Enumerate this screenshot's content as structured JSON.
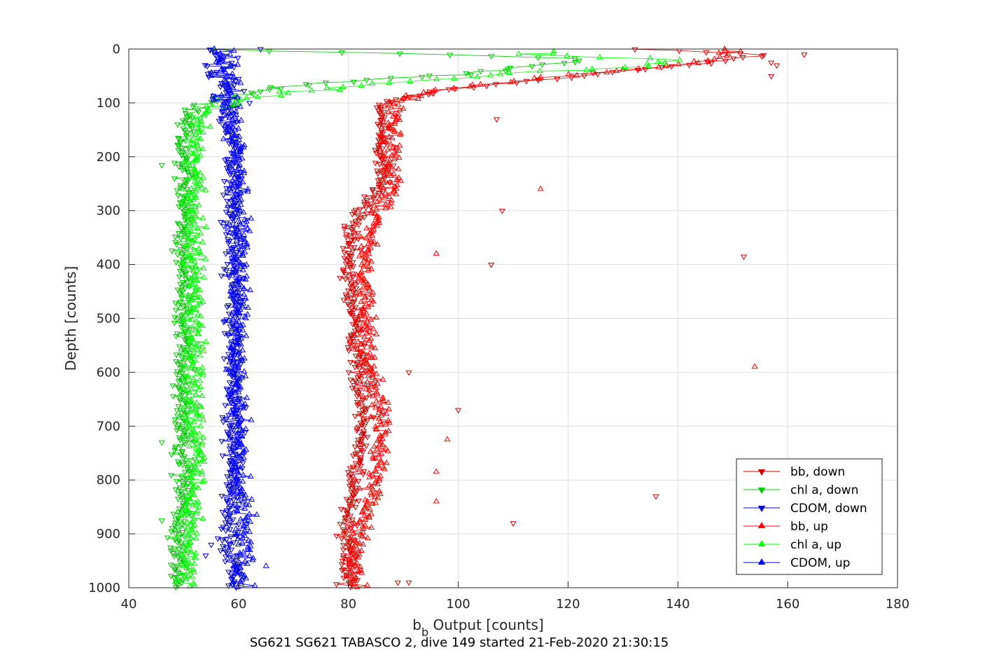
{
  "chart_data": {
    "type": "scatter",
    "title": "",
    "caption": "SG621 SG621 TABASCO 2, dive 149 started 21-Feb-2020 21:30:15",
    "xlabel": {
      "main": "b",
      "sub": "b",
      "rest": " Output [counts]"
    },
    "ylabel": "Depth [counts]",
    "xlim": [
      40,
      180
    ],
    "ylim": [
      0,
      1000
    ],
    "y_reversed": true,
    "grid": true,
    "legend_position": "bottom-right",
    "x_ticks": [
      "40",
      "60",
      "80",
      "100",
      "120",
      "140",
      "160",
      "180"
    ],
    "y_ticks": [
      "0",
      "100",
      "200",
      "300",
      "400",
      "500",
      "600",
      "700",
      "800",
      "900",
      "1000"
    ],
    "series": [
      {
        "name": "bb, down",
        "color": "#d00000",
        "marker": "triangle-down",
        "profile": [
          [
            0,
            135
          ],
          [
            10,
            155
          ],
          [
            20,
            150
          ],
          [
            30,
            140
          ],
          [
            45,
            125
          ],
          [
            60,
            112
          ],
          [
            75,
            98
          ],
          [
            90,
            90
          ],
          [
            100,
            87
          ],
          [
            130,
            86
          ],
          [
            200,
            86
          ],
          [
            250,
            86
          ],
          [
            300,
            82
          ],
          [
            350,
            80
          ],
          [
            400,
            80
          ],
          [
            500,
            81
          ],
          [
            600,
            82
          ],
          [
            700,
            83
          ],
          [
            800,
            81
          ],
          [
            900,
            80
          ],
          [
            1000,
            80
          ]
        ],
        "outliers": [
          [
            10,
            163
          ],
          [
            25,
            157
          ],
          [
            30,
            158
          ],
          [
            50,
            157
          ],
          [
            130,
            107
          ],
          [
            300,
            108
          ],
          [
            400,
            106
          ],
          [
            385,
            152
          ],
          [
            600,
            91
          ],
          [
            670,
            100
          ],
          [
            830,
            136
          ],
          [
            880,
            110
          ],
          [
            990,
            91
          ],
          [
            990,
            89
          ]
        ]
      },
      {
        "name": "chl a, down",
        "color": "#00c800",
        "marker": "triangle-down",
        "profile": [
          [
            0,
            55
          ],
          [
            10,
            100
          ],
          [
            20,
            125
          ],
          [
            35,
            110
          ],
          [
            50,
            95
          ],
          [
            65,
            72
          ],
          [
            80,
            62
          ],
          [
            95,
            56
          ],
          [
            110,
            52
          ],
          [
            130,
            51
          ],
          [
            200,
            50
          ],
          [
            300,
            50
          ],
          [
            400,
            50
          ],
          [
            500,
            50
          ],
          [
            600,
            50
          ],
          [
            700,
            50
          ],
          [
            800,
            50
          ],
          [
            900,
            49
          ],
          [
            1000,
            49
          ]
        ],
        "outliers": [
          [
            215,
            46
          ],
          [
            730,
            46
          ],
          [
            875,
            46
          ]
        ]
      },
      {
        "name": "CDOM, down",
        "color": "#0000d0",
        "marker": "triangle-down",
        "profile": [
          [
            0,
            56
          ],
          [
            50,
            57
          ],
          [
            100,
            58
          ],
          [
            200,
            59
          ],
          [
            300,
            59
          ],
          [
            400,
            59
          ],
          [
            500,
            59
          ],
          [
            600,
            59
          ],
          [
            700,
            59
          ],
          [
            800,
            59
          ],
          [
            900,
            58
          ],
          [
            1000,
            59
          ]
        ],
        "outliers": [
          [
            0,
            64
          ],
          [
            100,
            62
          ],
          [
            920,
            55
          ],
          [
            940,
            54
          ]
        ]
      },
      {
        "name": "bb, up",
        "color": "#ff0000",
        "marker": "triangle-up",
        "profile": [
          [
            0,
            148
          ],
          [
            10,
            150
          ],
          [
            25,
            143
          ],
          [
            40,
            130
          ],
          [
            55,
            115
          ],
          [
            70,
            100
          ],
          [
            85,
            92
          ],
          [
            100,
            89
          ],
          [
            150,
            88
          ],
          [
            250,
            88
          ],
          [
            300,
            86
          ],
          [
            350,
            84
          ],
          [
            400,
            83
          ],
          [
            500,
            83
          ],
          [
            600,
            84
          ],
          [
            700,
            86
          ],
          [
            800,
            85
          ],
          [
            900,
            82
          ],
          [
            1000,
            81
          ]
        ],
        "outliers": [
          [
            260,
            115
          ],
          [
            380,
            96
          ],
          [
            590,
            154
          ],
          [
            725,
            98
          ],
          [
            785,
            96
          ],
          [
            840,
            96
          ]
        ]
      },
      {
        "name": "chl a, up",
        "color": "#00ff00",
        "marker": "triangle-up",
        "profile": [
          [
            5,
            118
          ],
          [
            10,
            112
          ],
          [
            20,
            140
          ],
          [
            30,
            135
          ],
          [
            45,
            110
          ],
          [
            60,
            90
          ],
          [
            75,
            75
          ],
          [
            90,
            64
          ],
          [
            105,
            56
          ],
          [
            130,
            53
          ],
          [
            200,
            52
          ],
          [
            300,
            52
          ],
          [
            400,
            52
          ],
          [
            500,
            52
          ],
          [
            600,
            52
          ],
          [
            700,
            52
          ],
          [
            800,
            52
          ],
          [
            900,
            51
          ],
          [
            1000,
            51
          ]
        ],
        "outliers": []
      },
      {
        "name": "CDOM, up",
        "color": "#0000ff",
        "marker": "triangle-up",
        "profile": [
          [
            0,
            57
          ],
          [
            100,
            58
          ],
          [
            200,
            60
          ],
          [
            300,
            60
          ],
          [
            400,
            60
          ],
          [
            500,
            60
          ],
          [
            600,
            60
          ],
          [
            700,
            60
          ],
          [
            800,
            60
          ],
          [
            900,
            61
          ],
          [
            1000,
            61
          ]
        ],
        "outliers": [
          [
            960,
            65
          ]
        ]
      }
    ]
  }
}
